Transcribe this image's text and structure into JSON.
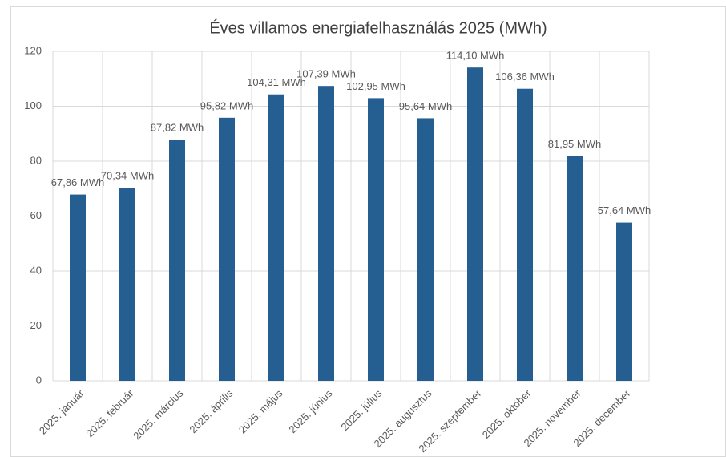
{
  "chart_data": {
    "type": "bar",
    "title": "Éves villamos energiafelhasználás 2025 (MWh)",
    "categories": [
      "2025. január",
      "2025. február",
      "2025. március",
      "2025. április",
      "2025. május",
      "2025. június",
      "2025. július",
      "2025. augusztus",
      "2025. szeptember",
      "2025. október",
      "2025. november",
      "2025. december"
    ],
    "values": [
      67.86,
      70.34,
      87.82,
      95.82,
      104.31,
      107.39,
      102.95,
      95.64,
      114.1,
      106.36,
      81.95,
      57.64
    ],
    "value_labels": [
      "67,86 MWh",
      "70,34 MWh",
      "87,82 MWh",
      "95,82 MWh",
      "104,31 MWh",
      "107,39 MWh",
      "102,95 MWh",
      "95,64 MWh",
      "114,10 MWh",
      "106,36 MWh",
      "81,95 MWh",
      "57,64 MWh"
    ],
    "color": "#255e91",
    "ylim": [
      0,
      120
    ],
    "yticks": [
      0,
      20,
      40,
      60,
      80,
      100,
      120
    ],
    "grid": true
  }
}
